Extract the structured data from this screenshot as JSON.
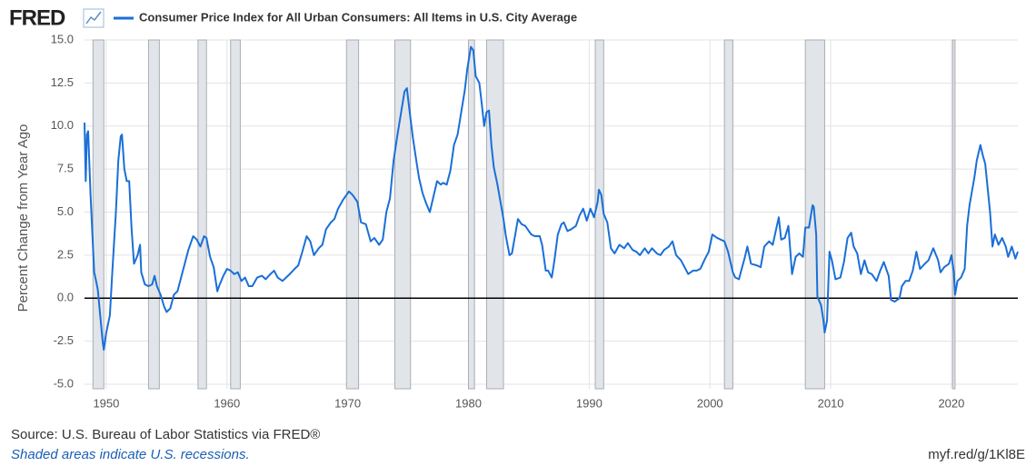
{
  "logo": "FRED",
  "chart_data": {
    "type": "line",
    "ylabel": "Percent Change from Year Ago",
    "source": "Source: U.S. Bureau of Labor Statistics via FRED®",
    "note": "Shaded areas indicate U.S. recessions.",
    "link": "myf.red/g/1Kl8E",
    "xlim": [
      1948.2,
      2025.5
    ],
    "xticks": [
      1950,
      1960,
      1970,
      1980,
      1990,
      2000,
      2010,
      2020
    ],
    "ylim": [
      -5,
      15
    ],
    "yticks": [
      {
        "value": -5,
        "label": "-5.0"
      },
      -2.5,
      {
        "value": 0,
        "label": "0.0"
      },
      2.5,
      {
        "value": 5,
        "label": "5.0"
      },
      7.5,
      {
        "value": 10,
        "label": "10.0"
      },
      12.5,
      {
        "value": 15,
        "label": "15.0"
      }
    ],
    "grid": true,
    "zero_line": true,
    "recessions": [
      [
        1948.9,
        1949.8
      ],
      [
        1953.5,
        1954.4
      ],
      [
        1957.6,
        1958.3
      ],
      [
        1960.3,
        1961.1
      ],
      [
        1969.9,
        1970.9
      ],
      [
        1973.9,
        1975.2
      ],
      [
        1980.0,
        1980.5
      ],
      [
        1981.5,
        1982.9
      ],
      [
        1990.5,
        1991.2
      ],
      [
        2001.2,
        2001.9
      ],
      [
        2007.9,
        2009.5
      ],
      [
        2020.1,
        2020.3
      ]
    ],
    "x": [
      1948.2,
      1948.3,
      1948.4,
      1948.5,
      1948.7,
      1948.9,
      1949.0,
      1949.1,
      1949.3,
      1949.5,
      1949.7,
      1949.8,
      1950.0,
      1950.3,
      1950.5,
      1950.8,
      1951.0,
      1951.2,
      1951.3,
      1951.5,
      1951.7,
      1951.9,
      1952.1,
      1952.3,
      1952.6,
      1952.8,
      1952.9,
      1953.2,
      1953.5,
      1953.8,
      1954.0,
      1954.2,
      1954.5,
      1954.8,
      1955.0,
      1955.3,
      1955.6,
      1955.9,
      1956.2,
      1956.5,
      1956.8,
      1957.2,
      1957.5,
      1957.8,
      1958.1,
      1958.3,
      1958.6,
      1958.9,
      1959.2,
      1959.4,
      1959.7,
      1960.0,
      1960.3,
      1960.6,
      1960.9,
      1961.2,
      1961.5,
      1961.8,
      1962.1,
      1962.5,
      1962.9,
      1963.2,
      1963.6,
      1963.9,
      1964.2,
      1964.6,
      1964.9,
      1965.2,
      1965.6,
      1965.9,
      1966.2,
      1966.6,
      1966.9,
      1967.2,
      1967.6,
      1967.9,
      1968.2,
      1968.6,
      1968.9,
      1969.2,
      1969.6,
      1969.9,
      1970.1,
      1970.4,
      1970.8,
      1971.1,
      1971.5,
      1971.9,
      1972.2,
      1972.6,
      1972.9,
      1973.2,
      1973.5,
      1973.8,
      1974.1,
      1974.4,
      1974.7,
      1974.9,
      1975.1,
      1975.4,
      1975.7,
      1975.9,
      1976.2,
      1976.5,
      1976.8,
      1977.1,
      1977.4,
      1977.7,
      1977.9,
      1978.2,
      1978.5,
      1978.8,
      1979.1,
      1979.4,
      1979.7,
      1979.9,
      1980.2,
      1980.4,
      1980.6,
      1980.9,
      1981.1,
      1981.3,
      1981.5,
      1981.7,
      1981.9,
      1982.1,
      1982.4,
      1982.6,
      1982.9,
      1983.1,
      1983.4,
      1983.6,
      1983.9,
      1984.1,
      1984.4,
      1984.7,
      1984.9,
      1985.2,
      1985.5,
      1985.9,
      1986.1,
      1986.4,
      1986.6,
      1986.9,
      1987.1,
      1987.4,
      1987.7,
      1987.9,
      1988.2,
      1988.5,
      1988.9,
      1989.2,
      1989.5,
      1989.8,
      1990.1,
      1990.4,
      1990.7,
      1990.8,
      1991.0,
      1991.2,
      1991.5,
      1991.8,
      1992.1,
      1992.5,
      1992.9,
      1993.2,
      1993.6,
      1993.9,
      1994.2,
      1994.6,
      1994.9,
      1995.2,
      1995.6,
      1995.9,
      1996.2,
      1996.6,
      1996.9,
      1997.2,
      1997.6,
      1997.9,
      1998.2,
      1998.6,
      1998.9,
      1999.2,
      1999.6,
      1999.9,
      2000.2,
      2000.6,
      2000.9,
      2001.2,
      2001.5,
      2001.9,
      2002.1,
      2002.4,
      2002.9,
      2003.1,
      2003.4,
      2003.9,
      2004.2,
      2004.5,
      2004.9,
      2005.2,
      2005.7,
      2005.9,
      2006.2,
      2006.5,
      2006.8,
      2007.1,
      2007.4,
      2007.7,
      2007.9,
      2008.2,
      2008.5,
      2008.6,
      2008.8,
      2008.9,
      2009.2,
      2009.4,
      2009.5,
      2009.7,
      2009.9,
      2010.1,
      2010.4,
      2010.8,
      2011.1,
      2011.4,
      2011.7,
      2011.9,
      2012.2,
      2012.5,
      2012.8,
      2013.1,
      2013.4,
      2013.8,
      2014.1,
      2014.4,
      2014.8,
      2015.0,
      2015.3,
      2015.7,
      2015.9,
      2016.2,
      2016.5,
      2016.8,
      2017.1,
      2017.4,
      2017.8,
      2018.1,
      2018.5,
      2018.9,
      2019.1,
      2019.4,
      2019.8,
      2020.0,
      2020.2,
      2020.3,
      2020.5,
      2020.8,
      2021.1,
      2021.3,
      2021.5,
      2021.7,
      2021.9,
      2022.1,
      2022.4,
      2022.6,
      2022.8,
      2023.0,
      2023.2,
      2023.4,
      2023.6,
      2023.9,
      2024.2,
      2024.5,
      2024.7,
      2025.0,
      2025.3,
      2025.5
    ],
    "series": [
      {
        "name": "Consumer Price Index for All Urban Consumers: All Items in U.S. City Average",
        "color": "#1a6fd8",
        "values": [
          10.2,
          6.8,
          9.5,
          9.7,
          6.0,
          3.0,
          1.5,
          1.2,
          0.5,
          -1.0,
          -2.5,
          -3.0,
          -2.0,
          -1.0,
          1.5,
          5.0,
          8.0,
          9.4,
          9.5,
          7.5,
          6.8,
          6.8,
          4.0,
          2.0,
          2.5,
          3.1,
          1.5,
          0.8,
          0.7,
          0.8,
          1.3,
          0.7,
          0.2,
          -0.5,
          -0.8,
          -0.6,
          0.2,
          0.4,
          1.2,
          2.0,
          2.8,
          3.6,
          3.4,
          3.0,
          3.6,
          3.5,
          2.4,
          1.8,
          0.4,
          0.8,
          1.3,
          1.7,
          1.6,
          1.4,
          1.5,
          1.0,
          1.2,
          0.7,
          0.7,
          1.2,
          1.3,
          1.1,
          1.4,
          1.6,
          1.2,
          1.0,
          1.2,
          1.4,
          1.7,
          1.9,
          2.6,
          3.6,
          3.3,
          2.5,
          2.9,
          3.1,
          4.0,
          4.4,
          4.6,
          5.2,
          5.7,
          6.0,
          6.2,
          6.0,
          5.6,
          4.4,
          4.3,
          3.3,
          3.5,
          3.1,
          3.4,
          5.0,
          5.8,
          8.0,
          9.4,
          10.7,
          12.0,
          12.2,
          11.0,
          9.3,
          7.9,
          7.0,
          6.1,
          5.5,
          5.0,
          5.9,
          6.8,
          6.6,
          6.7,
          6.6,
          7.4,
          8.9,
          9.5,
          10.8,
          12.1,
          13.3,
          14.6,
          14.4,
          12.9,
          12.5,
          11.3,
          10.0,
          10.8,
          10.9,
          8.9,
          7.6,
          6.6,
          5.8,
          4.6,
          3.6,
          2.5,
          2.6,
          3.8,
          4.6,
          4.3,
          4.2,
          4.0,
          3.7,
          3.6,
          3.6,
          3.1,
          1.6,
          1.6,
          1.2,
          2.1,
          3.7,
          4.3,
          4.4,
          3.9,
          4.0,
          4.2,
          4.8,
          5.2,
          4.5,
          5.2,
          4.7,
          5.6,
          6.3,
          6.0,
          4.9,
          4.4,
          2.9,
          2.6,
          3.1,
          2.9,
          3.2,
          2.8,
          2.7,
          2.5,
          2.9,
          2.6,
          2.9,
          2.6,
          2.5,
          2.8,
          3.0,
          3.3,
          2.5,
          2.2,
          1.8,
          1.4,
          1.6,
          1.6,
          1.7,
          2.3,
          2.7,
          3.7,
          3.5,
          3.4,
          3.3,
          2.7,
          1.5,
          1.2,
          1.1,
          2.4,
          3.0,
          2.0,
          1.9,
          1.8,
          3.0,
          3.3,
          3.1,
          4.7,
          3.4,
          3.5,
          4.2,
          1.4,
          2.4,
          2.6,
          2.4,
          4.1,
          4.1,
          5.4,
          5.3,
          3.7,
          0.1,
          -0.4,
          -1.3,
          -2.0,
          -1.3,
          2.7,
          2.2,
          1.1,
          1.2,
          2.1,
          3.5,
          3.8,
          3.0,
          2.6,
          1.4,
          2.2,
          1.5,
          1.4,
          1.0,
          1.6,
          2.1,
          1.3,
          -0.1,
          -0.2,
          0.0,
          0.7,
          1.0,
          1.0,
          1.6,
          2.7,
          1.7,
          2.0,
          2.2,
          2.9,
          2.2,
          1.5,
          1.8,
          2.0,
          2.5,
          1.5,
          0.2,
          1.0,
          1.2,
          1.7,
          4.2,
          5.4,
          6.2,
          7.0,
          8.0,
          8.9,
          8.3,
          7.8,
          6.4,
          5.0,
          3.0,
          3.7,
          3.1,
          3.5,
          3.0,
          2.4,
          3.0,
          2.3,
          2.7
        ]
      }
    ]
  }
}
